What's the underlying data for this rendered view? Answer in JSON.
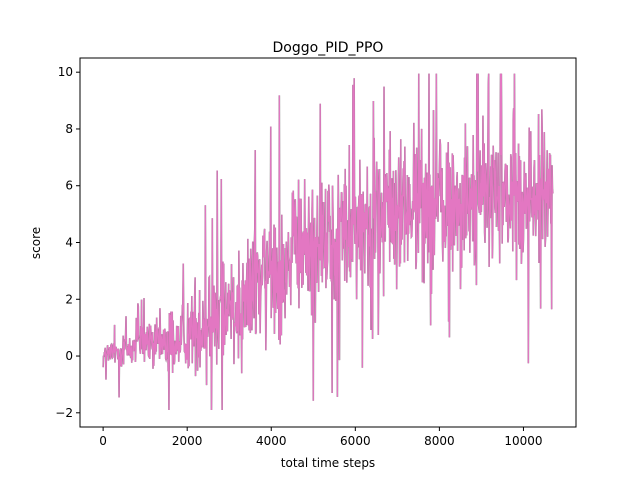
{
  "chart_data": {
    "type": "line",
    "title": "Doggo_PID_PPO",
    "xlabel": "total time steps",
    "ylabel": "score",
    "xlim": [
      -550,
      11250
    ],
    "ylim": [
      -2.5,
      10.5
    ],
    "xticks": [
      0,
      2000,
      4000,
      6000,
      8000,
      10000
    ],
    "xtick_labels": [
      "0",
      "2000",
      "4000",
      "6000",
      "8000",
      "10000"
    ],
    "yticks": [
      -2,
      0,
      2,
      4,
      6,
      8,
      10
    ],
    "ytick_labels": [
      "−2",
      "0",
      "2",
      "4",
      "6",
      "8",
      "10"
    ],
    "grid": false,
    "legend": "none",
    "colors": {
      "series": "#e377c2",
      "shadow": "#7f7f7f",
      "axes": "#000000",
      "background": "#ffffff"
    },
    "series": [
      {
        "values_note_free": true,
        "x": [
          0,
          250,
          500,
          750,
          1000,
          1250,
          1500,
          1750,
          2000,
          2250,
          2500,
          2750,
          3000,
          3250,
          3500,
          3750,
          4000,
          4250,
          4500,
          4750,
          5000,
          5250,
          5500,
          5750,
          6000,
          6250,
          6500,
          6750,
          7000,
          7250,
          7500,
          7750,
          8000,
          8250,
          8500,
          8750,
          9000,
          9250,
          9500,
          9750,
          10000,
          10250,
          10500,
          10700
        ],
        "y": [
          0.0,
          0.1,
          0.2,
          0.3,
          0.4,
          0.4,
          0.5,
          0.6,
          0.8,
          1.0,
          1.3,
          1.5,
          1.7,
          2.0,
          2.3,
          2.6,
          3.0,
          3.3,
          3.5,
          3.8,
          4.0,
          4.2,
          4.3,
          4.5,
          4.7,
          4.8,
          4.9,
          5.0,
          5.1,
          5.2,
          5.3,
          5.3,
          5.4,
          5.4,
          5.5,
          5.5,
          5.5,
          5.6,
          5.6,
          5.6,
          5.6,
          5.7,
          5.6,
          5.5
        ],
        "spread": [
          0.4,
          0.6,
          0.7,
          0.8,
          0.8,
          0.9,
          1.0,
          1.1,
          1.3,
          1.5,
          1.8,
          2.0,
          2.0,
          2.1,
          2.1,
          2.2,
          2.3,
          2.3,
          2.3,
          2.3,
          2.3,
          2.3,
          2.4,
          2.4,
          2.4,
          2.4,
          2.4,
          2.4,
          2.4,
          2.4,
          2.4,
          2.4,
          2.4,
          2.4,
          2.4,
          2.4,
          2.4,
          2.4,
          2.4,
          2.3,
          2.3,
          2.3,
          2.3,
          2.2
        ],
        "min": -1.9,
        "max": 9.95
      }
    ]
  }
}
